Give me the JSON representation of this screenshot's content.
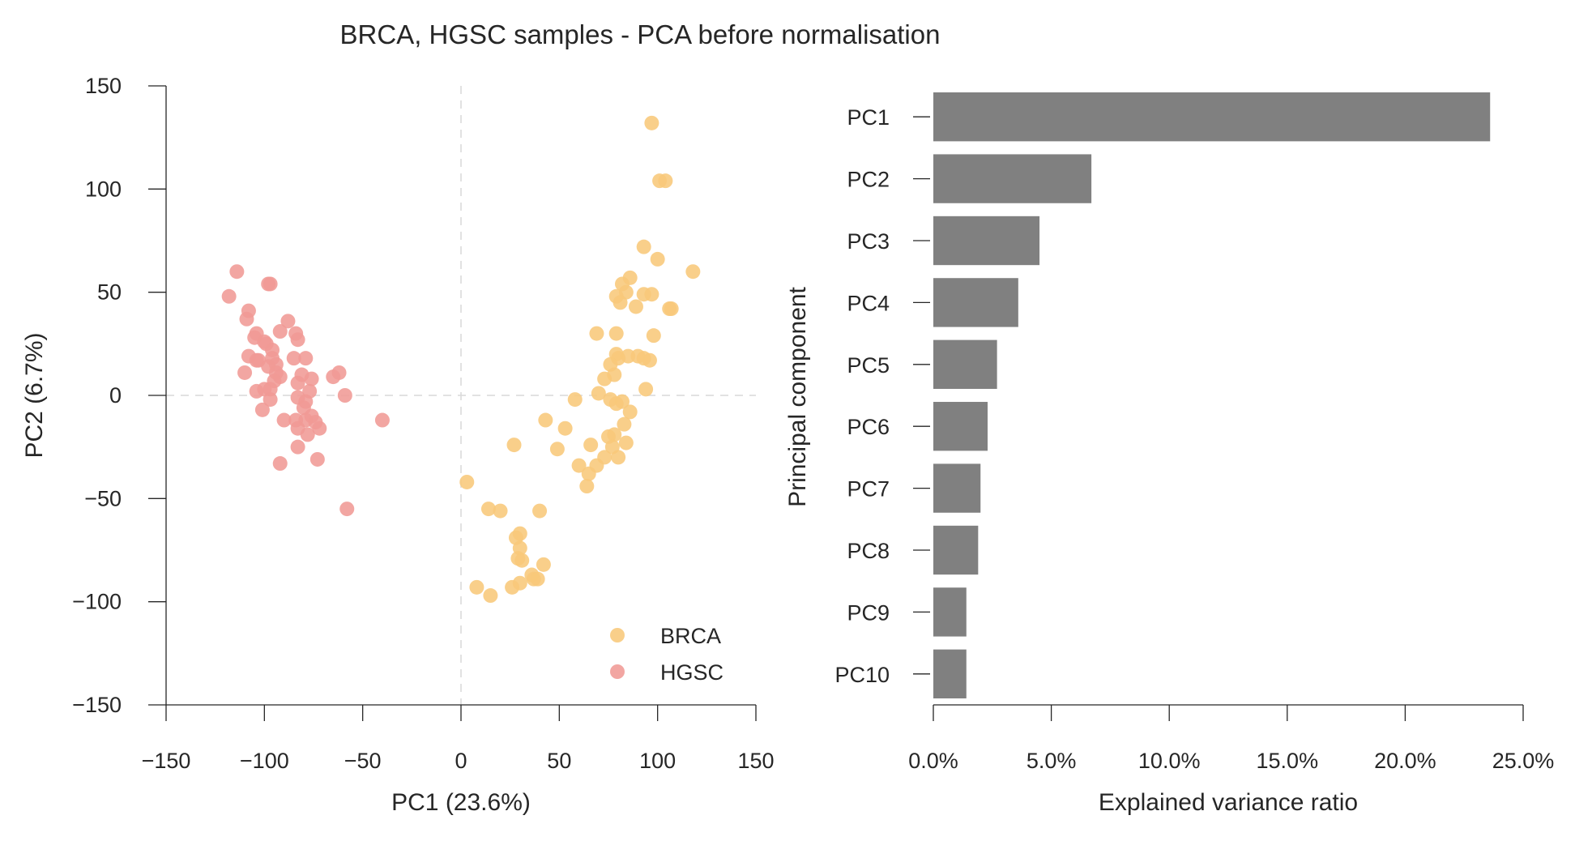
{
  "figure": {
    "title": "BRCA, HGSC samples - PCA before normalisation"
  },
  "chart_data": [
    {
      "type": "scatter",
      "xlabel": "PC1 (23.6%)",
      "ylabel": "PC2 (6.7%)",
      "xlim": [
        -150,
        150
      ],
      "ylim": [
        -150,
        150
      ],
      "xticks": [
        -150,
        -100,
        -50,
        0,
        50,
        100,
        150
      ],
      "yticks": [
        -150,
        -100,
        -50,
        0,
        50,
        100,
        150
      ],
      "xtick_labels": [
        "−150",
        "−100",
        "−50",
        "0",
        "50",
        "100",
        "150"
      ],
      "ytick_labels": [
        "−150",
        "−100",
        "−50",
        "0",
        "50",
        "100",
        "150"
      ],
      "zero_lines": true,
      "grid": false,
      "legend": "lower-right",
      "series": [
        {
          "name": "BRCA",
          "color": "#f8c87a",
          "points": [
            [
              97,
              132
            ],
            [
              101,
              104
            ],
            [
              104,
              104
            ],
            [
              93,
              72
            ],
            [
              100,
              66
            ],
            [
              118,
              60
            ],
            [
              86,
              57
            ],
            [
              82,
              54
            ],
            [
              84,
              50
            ],
            [
              93,
              49
            ],
            [
              79,
              48
            ],
            [
              97,
              49
            ],
            [
              89,
              43
            ],
            [
              106,
              42
            ],
            [
              107,
              42
            ],
            [
              81,
              45
            ],
            [
              69,
              30
            ],
            [
              79,
              30
            ],
            [
              98,
              29
            ],
            [
              79,
              20
            ],
            [
              85,
              19
            ],
            [
              90,
              19
            ],
            [
              93,
              18
            ],
            [
              96,
              17
            ],
            [
              80,
              18
            ],
            [
              76,
              15
            ],
            [
              73,
              8
            ],
            [
              78,
              10
            ],
            [
              70,
              1
            ],
            [
              76,
              -2
            ],
            [
              82,
              -3
            ],
            [
              79,
              -4
            ],
            [
              86,
              -8
            ],
            [
              94,
              3
            ],
            [
              58,
              -2
            ],
            [
              43,
              -12
            ],
            [
              53,
              -16
            ],
            [
              83,
              -14
            ],
            [
              75,
              -20
            ],
            [
              78,
              -19
            ],
            [
              84,
              -23
            ],
            [
              77,
              -25
            ],
            [
              66,
              -24
            ],
            [
              27,
              -24
            ],
            [
              49,
              -26
            ],
            [
              80,
              -30
            ],
            [
              73,
              -30
            ],
            [
              60,
              -34
            ],
            [
              69,
              -34
            ],
            [
              65,
              -38
            ],
            [
              64,
              -44
            ],
            [
              3,
              -42
            ],
            [
              14,
              -55
            ],
            [
              20,
              -56
            ],
            [
              40,
              -56
            ],
            [
              30,
              -67
            ],
            [
              28,
              -69
            ],
            [
              30,
              -74
            ],
            [
              29,
              -79
            ],
            [
              31,
              -80
            ],
            [
              42,
              -82
            ],
            [
              36,
              -87
            ],
            [
              37,
              -89
            ],
            [
              39,
              -89
            ],
            [
              30,
              -91
            ],
            [
              26,
              -93
            ],
            [
              8,
              -93
            ],
            [
              15,
              -97
            ]
          ]
        },
        {
          "name": "HGSC",
          "color": "#f09a95",
          "points": [
            [
              -114,
              60
            ],
            [
              -118,
              48
            ],
            [
              -98,
              54
            ],
            [
              -97,
              54
            ],
            [
              -108,
              41
            ],
            [
              -109,
              37
            ],
            [
              -88,
              36
            ],
            [
              -92,
              31
            ],
            [
              -84,
              30
            ],
            [
              -104,
              30
            ],
            [
              -105,
              28
            ],
            [
              -100,
              26
            ],
            [
              -99,
              25
            ],
            [
              -83,
              27
            ],
            [
              -96,
              22
            ],
            [
              -108,
              19
            ],
            [
              -104,
              17
            ],
            [
              -103,
              17
            ],
            [
              -96,
              18
            ],
            [
              -85,
              18
            ],
            [
              -79,
              18
            ],
            [
              -94,
              15
            ],
            [
              -98,
              14
            ],
            [
              -110,
              11
            ],
            [
              -94,
              11
            ],
            [
              -92,
              9
            ],
            [
              -81,
              10
            ],
            [
              -95,
              7
            ],
            [
              -83,
              6
            ],
            [
              -62,
              11
            ],
            [
              -65,
              9
            ],
            [
              -76,
              8
            ],
            [
              -59,
              0
            ],
            [
              -97,
              3
            ],
            [
              -104,
              2
            ],
            [
              -100,
              3
            ],
            [
              -77,
              2
            ],
            [
              -83,
              -1
            ],
            [
              -97,
              -2
            ],
            [
              -79,
              -3
            ],
            [
              -80,
              -6
            ],
            [
              -101,
              -7
            ],
            [
              -76,
              -10
            ],
            [
              -90,
              -12
            ],
            [
              -84,
              -12
            ],
            [
              -79,
              -12
            ],
            [
              -74,
              -13
            ],
            [
              -72,
              -16
            ],
            [
              -83,
              -16
            ],
            [
              -78,
              -19
            ],
            [
              -40,
              -12
            ],
            [
              -83,
              -25
            ],
            [
              -73,
              -31
            ],
            [
              -92,
              -33
            ],
            [
              -58,
              -55
            ]
          ]
        }
      ]
    },
    {
      "type": "bar",
      "orientation": "horizontal",
      "categories": [
        "PC1",
        "PC2",
        "PC3",
        "PC4",
        "PC5",
        "PC6",
        "PC7",
        "PC8",
        "PC9",
        "PC10"
      ],
      "values": [
        0.236,
        0.067,
        0.045,
        0.036,
        0.027,
        0.023,
        0.02,
        0.019,
        0.014,
        0.014
      ],
      "xlabel": "Explained variance ratio",
      "ylabel": "Principal component",
      "xlim": [
        0,
        0.25
      ],
      "xticks": [
        0,
        0.05,
        0.1,
        0.15,
        0.2,
        0.25
      ],
      "xtick_labels": [
        "0.0%",
        "5.0%",
        "10.0%",
        "15.0%",
        "20.0%",
        "25.0%"
      ],
      "color": "#808080",
      "grid": false
    }
  ]
}
